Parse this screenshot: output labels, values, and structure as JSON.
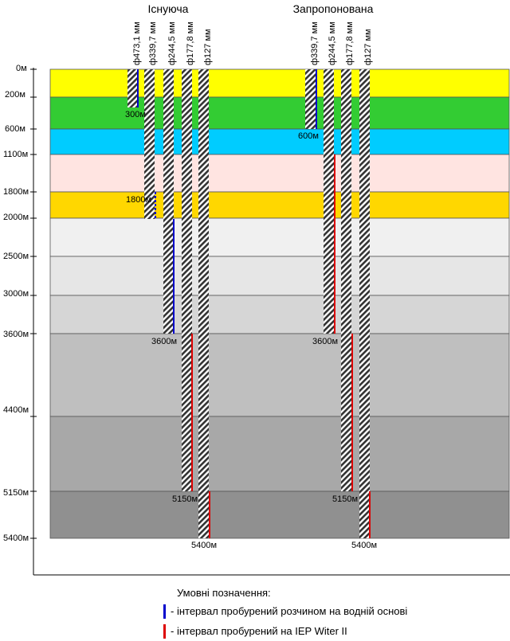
{
  "columns": [
    {
      "title": "Існуюча"
    },
    {
      "title": "Запропонована"
    }
  ],
  "existing": {
    "diameters": [
      "ф473,1 мм",
      "ф339,7 мм",
      "ф244,5 мм",
      "ф177,8 мм",
      "ф127 мм"
    ],
    "shoe_labels": [
      "300м",
      "1800м",
      "3600м",
      "5150м",
      "5400м"
    ]
  },
  "proposed": {
    "diameters": [
      "ф339,7 мм",
      "ф244,5 мм",
      "ф177,8 мм",
      "ф127 мм"
    ],
    "shoe_labels": [
      "600м",
      "3600м",
      "5150м",
      "5400м"
    ]
  },
  "depth_labels": [
    "0м",
    "200м",
    "600м",
    "1100м",
    "1800м",
    "2000м",
    "2500м",
    "3000м",
    "3600м",
    "4400м",
    "5150м",
    "5400м"
  ],
  "layers": [
    {
      "color": "#ffff00"
    },
    {
      "color": "#33cc33"
    },
    {
      "color": "#00ccff"
    },
    {
      "color": "#ffe4e1"
    },
    {
      "color": "#ffd700"
    },
    {
      "color": "#f0f0f0"
    },
    {
      "color": "#e6e6e6"
    },
    {
      "color": "#d6d6d6"
    },
    {
      "color": "#bfbfbf"
    },
    {
      "color": "#a8a8a8"
    },
    {
      "color": "#909090"
    }
  ],
  "colors": {
    "water_based": "#0000cc",
    "witer": "#dd0000"
  },
  "legend": {
    "title": "Умовні позначення:",
    "items": [
      {
        "label": "- інтервал пробурений розчином на водній основі",
        "color": "#0000cc"
      },
      {
        "label": "- інтервал пробурений на IEP Witer II",
        "color": "#dd0000"
      }
    ]
  }
}
